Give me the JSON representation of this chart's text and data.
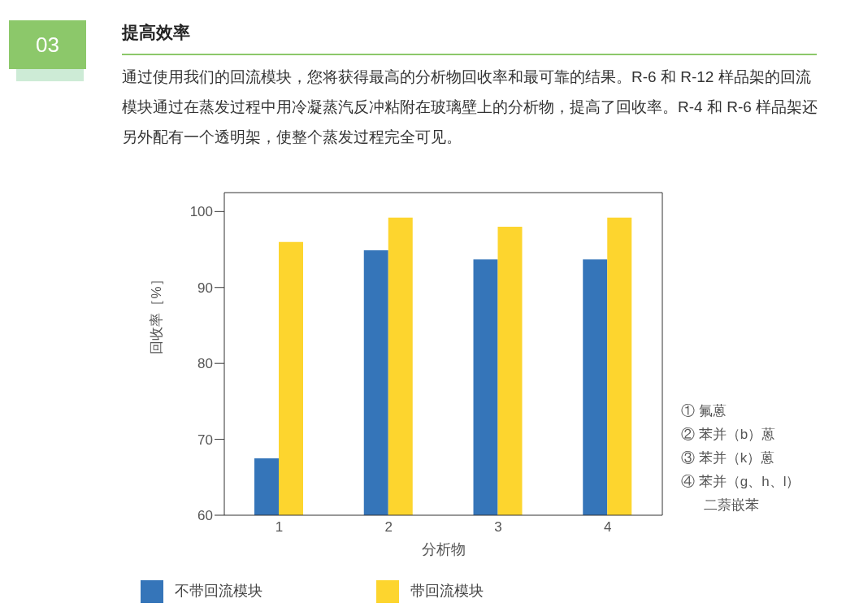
{
  "chart_data": {
    "type": "bar",
    "title": "提高效率",
    "subtitle": "通过使用我们的回流模块，您将获得最高的分析物回收率和最可靠的结果。R-6 和 R-12 样品架的回流模块通过在蒸发过程中用冷凝蒸汽反冲粘附在玻璃壁上的分析物，提高了回收率。R-4 和 R-6 样品架还另外配有一个透明架，使整个蒸发过程完全可见。",
    "annotations": [
      "03",
      "① 氟蒽",
      "② 苯并（b）蒽",
      "③ 苯并（k）蒽",
      "④ 苯并（g、h、l）二萘嵌苯"
    ],
    "xlabel": "分析物",
    "ylabel": "回收率［%］",
    "categories": [
      "1",
      "2",
      "3",
      "4"
    ],
    "series": [
      {
        "name": "不带回流模块",
        "color": "#3575b9",
        "values": [
          67.5,
          94.9,
          93.7,
          93.7
        ]
      },
      {
        "name": "带回流模块",
        "color": "#fdd52e",
        "values": [
          96.0,
          99.2,
          98.0,
          99.2
        ]
      }
    ],
    "ylim": [
      60,
      102.5
    ],
    "yticks": [
      60,
      70,
      80,
      90,
      100
    ],
    "grid": false,
    "legend": "bottom"
  }
}
